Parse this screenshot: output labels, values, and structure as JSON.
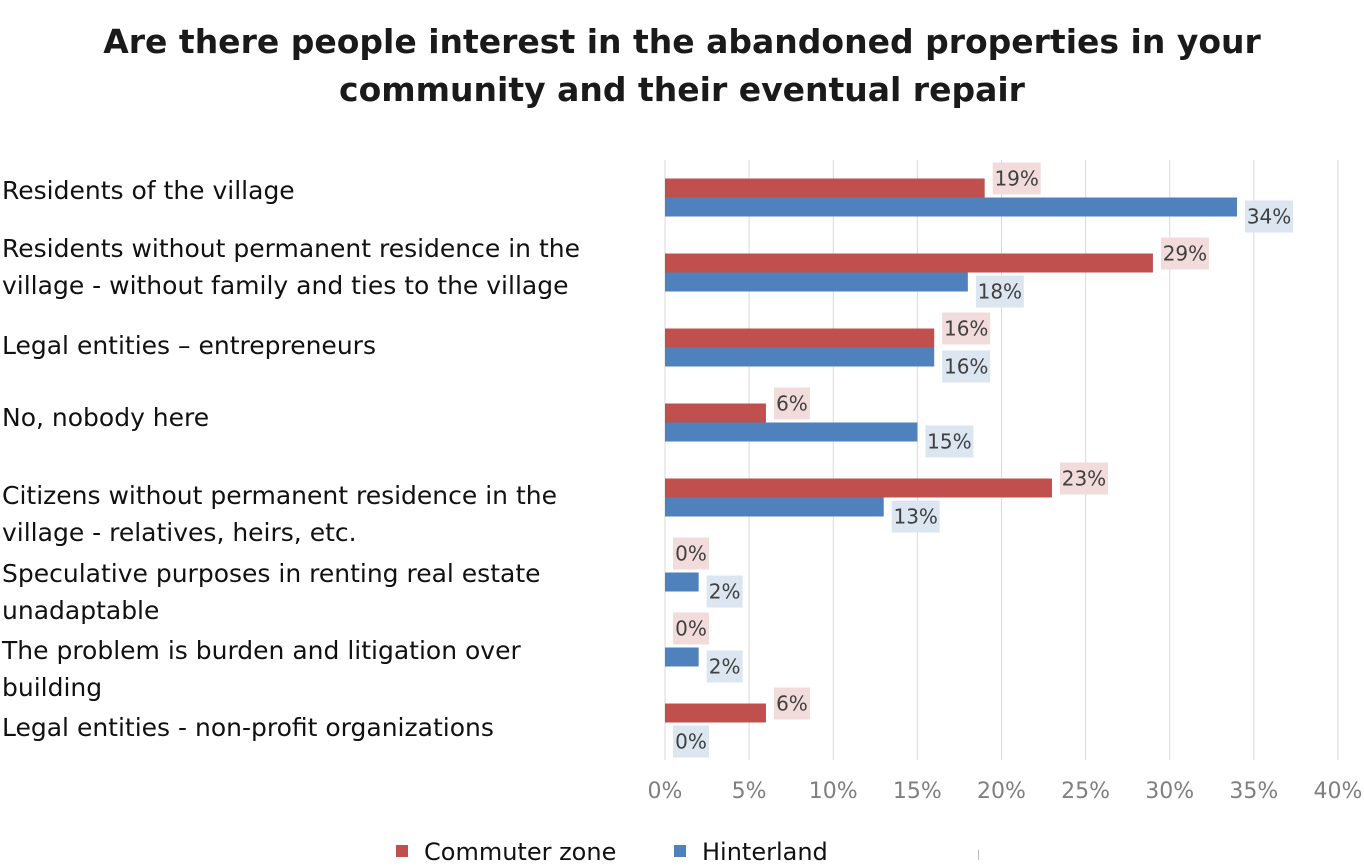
{
  "chart_data": {
    "type": "bar",
    "orientation": "horizontal",
    "title": "Are there people interest in the abandoned properties in your community and their eventual repair",
    "categories": [
      "Residents of the village",
      "Residents without permanent residence in the village - without family and ties to the village",
      "Legal entities – entrepreneurs",
      "No, nobody here",
      "Citizens without permanent residence in the village - relatives, heirs, etc.",
      "Speculative purposes in renting real estate unadaptable",
      "The problem is burden and litigation over building",
      "Legal entities - non-profit organizations"
    ],
    "series": [
      {
        "name": "Commuter zone",
        "color": "#c0504d",
        "label_bg": "#f2dcdb",
        "values": [
          19,
          29,
          16,
          6,
          23,
          0,
          0,
          6
        ],
        "labels": [
          "19%",
          "29%",
          "16%",
          "6%",
          "23%",
          "0%",
          "0%",
          "6%"
        ]
      },
      {
        "name": "Hinterland",
        "color": "#4f81bd",
        "label_bg": "#dce6f1",
        "values": [
          34,
          18,
          16,
          15,
          13,
          2,
          2,
          0
        ],
        "labels": [
          "34%",
          "18%",
          "16%",
          "15%",
          "13%",
          "2%",
          "2%",
          "0%"
        ]
      }
    ],
    "xlim": [
      0,
      40
    ],
    "xticks": [
      "0%",
      "5%",
      "10%",
      "15%",
      "20%",
      "25%",
      "30%",
      "35%",
      "40%"
    ],
    "grid": true,
    "legend": "bottom"
  }
}
